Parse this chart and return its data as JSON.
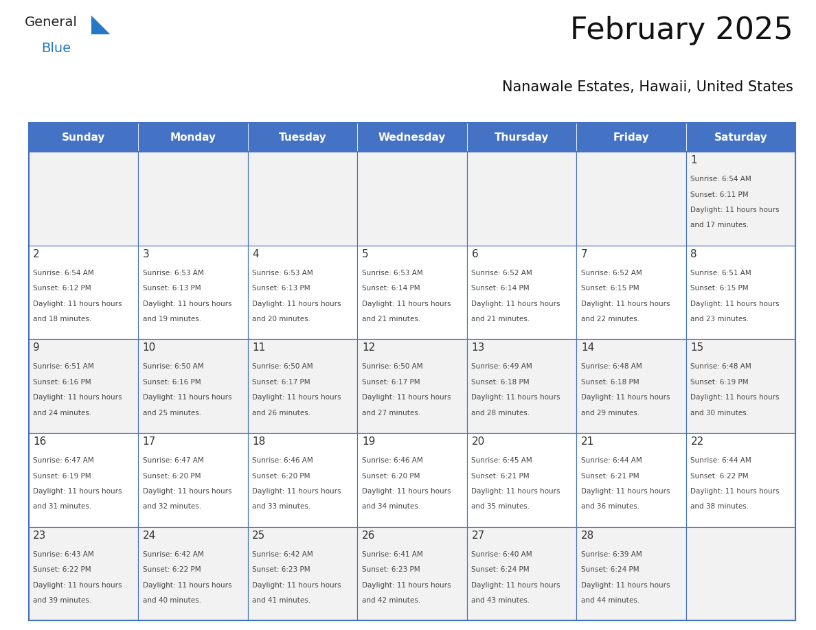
{
  "title": "February 2025",
  "subtitle": "Nanawale Estates, Hawaii, United States",
  "days_of_week": [
    "Sunday",
    "Monday",
    "Tuesday",
    "Wednesday",
    "Thursday",
    "Friday",
    "Saturday"
  ],
  "header_bg": "#4472C4",
  "header_text": "#FFFFFF",
  "cell_bg_light": "#F2F2F2",
  "cell_bg_white": "#FFFFFF",
  "border_color": "#4472C4",
  "text_color": "#333333",
  "day_number_color": "#333333",
  "calendar_data": [
    [
      null,
      null,
      null,
      null,
      null,
      null,
      {
        "day": 1,
        "sunrise": "6:54 AM",
        "sunset": "6:11 PM",
        "daylight": "11 hours and 17 minutes"
      }
    ],
    [
      {
        "day": 2,
        "sunrise": "6:54 AM",
        "sunset": "6:12 PM",
        "daylight": "11 hours and 18 minutes"
      },
      {
        "day": 3,
        "sunrise": "6:53 AM",
        "sunset": "6:13 PM",
        "daylight": "11 hours and 19 minutes"
      },
      {
        "day": 4,
        "sunrise": "6:53 AM",
        "sunset": "6:13 PM",
        "daylight": "11 hours and 20 minutes"
      },
      {
        "day": 5,
        "sunrise": "6:53 AM",
        "sunset": "6:14 PM",
        "daylight": "11 hours and 21 minutes"
      },
      {
        "day": 6,
        "sunrise": "6:52 AM",
        "sunset": "6:14 PM",
        "daylight": "11 hours and 21 minutes"
      },
      {
        "day": 7,
        "sunrise": "6:52 AM",
        "sunset": "6:15 PM",
        "daylight": "11 hours and 22 minutes"
      },
      {
        "day": 8,
        "sunrise": "6:51 AM",
        "sunset": "6:15 PM",
        "daylight": "11 hours and 23 minutes"
      }
    ],
    [
      {
        "day": 9,
        "sunrise": "6:51 AM",
        "sunset": "6:16 PM",
        "daylight": "11 hours and 24 minutes"
      },
      {
        "day": 10,
        "sunrise": "6:50 AM",
        "sunset": "6:16 PM",
        "daylight": "11 hours and 25 minutes"
      },
      {
        "day": 11,
        "sunrise": "6:50 AM",
        "sunset": "6:17 PM",
        "daylight": "11 hours and 26 minutes"
      },
      {
        "day": 12,
        "sunrise": "6:50 AM",
        "sunset": "6:17 PM",
        "daylight": "11 hours and 27 minutes"
      },
      {
        "day": 13,
        "sunrise": "6:49 AM",
        "sunset": "6:18 PM",
        "daylight": "11 hours and 28 minutes"
      },
      {
        "day": 14,
        "sunrise": "6:48 AM",
        "sunset": "6:18 PM",
        "daylight": "11 hours and 29 minutes"
      },
      {
        "day": 15,
        "sunrise": "6:48 AM",
        "sunset": "6:19 PM",
        "daylight": "11 hours and 30 minutes"
      }
    ],
    [
      {
        "day": 16,
        "sunrise": "6:47 AM",
        "sunset": "6:19 PM",
        "daylight": "11 hours and 31 minutes"
      },
      {
        "day": 17,
        "sunrise": "6:47 AM",
        "sunset": "6:20 PM",
        "daylight": "11 hours and 32 minutes"
      },
      {
        "day": 18,
        "sunrise": "6:46 AM",
        "sunset": "6:20 PM",
        "daylight": "11 hours and 33 minutes"
      },
      {
        "day": 19,
        "sunrise": "6:46 AM",
        "sunset": "6:20 PM",
        "daylight": "11 hours and 34 minutes"
      },
      {
        "day": 20,
        "sunrise": "6:45 AM",
        "sunset": "6:21 PM",
        "daylight": "11 hours and 35 minutes"
      },
      {
        "day": 21,
        "sunrise": "6:44 AM",
        "sunset": "6:21 PM",
        "daylight": "11 hours and 36 minutes"
      },
      {
        "day": 22,
        "sunrise": "6:44 AM",
        "sunset": "6:22 PM",
        "daylight": "11 hours and 38 minutes"
      }
    ],
    [
      {
        "day": 23,
        "sunrise": "6:43 AM",
        "sunset": "6:22 PM",
        "daylight": "11 hours and 39 minutes"
      },
      {
        "day": 24,
        "sunrise": "6:42 AM",
        "sunset": "6:22 PM",
        "daylight": "11 hours and 40 minutes"
      },
      {
        "day": 25,
        "sunrise": "6:42 AM",
        "sunset": "6:23 PM",
        "daylight": "11 hours and 41 minutes"
      },
      {
        "day": 26,
        "sunrise": "6:41 AM",
        "sunset": "6:23 PM",
        "daylight": "11 hours and 42 minutes"
      },
      {
        "day": 27,
        "sunrise": "6:40 AM",
        "sunset": "6:24 PM",
        "daylight": "11 hours and 43 minutes"
      },
      {
        "day": 28,
        "sunrise": "6:39 AM",
        "sunset": "6:24 PM",
        "daylight": "11 hours and 44 minutes"
      },
      null
    ]
  ],
  "logo_general_color": "#222222",
  "logo_blue_color": "#2478C5",
  "logo_triangle_color": "#2478C5"
}
